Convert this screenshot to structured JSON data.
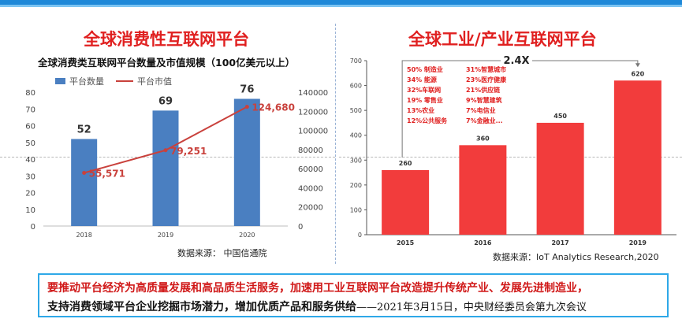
{
  "left_panel": {
    "heading": "全球消费性互联网平台",
    "source": "数据来源：  中国信通院"
  },
  "right_panel": {
    "heading": "全球工业/产业互联网平台",
    "source": "数据来源：IoT Analytics Research,2020",
    "growth_label": "2.4X",
    "sector_breakdown": [
      [
        "50% 制造业",
        "31%智慧城市"
      ],
      [
        "34% 能源",
        "23%医疗健康"
      ],
      [
        "32%车联网",
        "21%供应链"
      ],
      [
        "19% 零售业",
        "9%智慧建筑"
      ],
      [
        "13%农业",
        "7%电信业"
      ],
      [
        "12%公共服务",
        "7%金融业..."
      ]
    ]
  },
  "callout": {
    "line1": "要推动平台经济为高质量发展和高品质生活服务，加速用工业互联网平台改造提升传统产业、发展先进制造业，",
    "line2_bold": "支持消费领域平台企业挖掘市场潜力，增加优质产品和服务供给",
    "line2_cite": "——2021年3月15日，中央财经委员会第九次会议"
  },
  "colors": {
    "bar_blue": "#4a7fc1",
    "line_red": "#c9413c",
    "bar_red": "#f23c3c",
    "heading_red": "#e02020",
    "accent_blue": "#2ea8e8"
  },
  "chart_data": [
    {
      "type": "bar",
      "title": "全球消费类互联网平台数量及市值规模（100亿美元以上）",
      "categories": [
        "2018",
        "2019",
        "2020"
      ],
      "series": [
        {
          "name": "平台数量",
          "type": "bar",
          "axis": "left",
          "values": [
            52,
            69,
            76
          ],
          "labels": [
            "52",
            "69",
            "76"
          ]
        },
        {
          "name": "平台市值",
          "type": "line",
          "axis": "right",
          "values": [
            55571,
            79251,
            124680
          ],
          "labels": [
            "55,571",
            "79,251",
            "124,680"
          ]
        }
      ],
      "y_left": {
        "ylim": [
          0,
          80
        ],
        "ticks": [
          "0",
          "10",
          "20",
          "30",
          "40",
          "50",
          "60",
          "70",
          "80"
        ]
      },
      "y_right": {
        "ylim": [
          0,
          140000
        ],
        "ticks": [
          "0",
          "20000",
          "40000",
          "60000",
          "80000",
          "100000",
          "120000",
          "140000"
        ]
      },
      "grid": false,
      "legend": "top-left"
    },
    {
      "type": "bar",
      "categories": [
        "2015",
        "2016",
        "2017",
        "2019"
      ],
      "values": [
        260,
        360,
        450,
        620
      ],
      "labels": [
        "260",
        "360",
        "450",
        "620"
      ],
      "ylim": [
        0,
        700
      ],
      "yticks": [
        "0",
        "100",
        "200",
        "300",
        "400",
        "500",
        "600",
        "700"
      ],
      "grid": false
    }
  ]
}
